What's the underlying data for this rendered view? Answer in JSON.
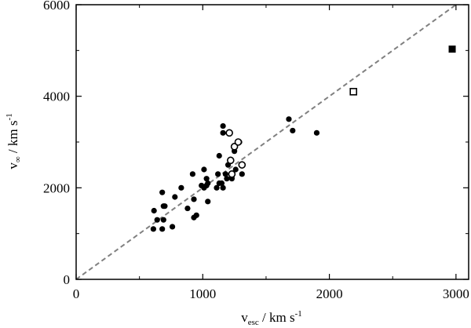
{
  "chart_data": {
    "type": "scatter",
    "xlabel": {
      "main": "v",
      "sub": "esc",
      "unit": " / km s",
      "sup": "-1"
    },
    "ylabel": {
      "main": "v",
      "sub": "∞",
      "unit": " / km s",
      "sup": "-1"
    },
    "xlim": [
      0,
      3100
    ],
    "ylim": [
      0,
      6000
    ],
    "xticks": [
      0,
      1000,
      2000,
      3000
    ],
    "yticks": [
      0,
      2000,
      4000,
      6000
    ],
    "xtick_labels": [
      "0",
      "1000",
      "2000",
      "3000"
    ],
    "ytick_labels": [
      "0",
      "2000",
      "4000",
      "6000"
    ],
    "grid": false,
    "reference_line": {
      "slope": 2.0,
      "style": "dashed",
      "color": "#808080"
    },
    "series": [
      {
        "marker": "filled-circle",
        "color": "#000000",
        "points": [
          [
            610,
            1100
          ],
          [
            615,
            1500
          ],
          [
            640,
            1300
          ],
          [
            680,
            1100
          ],
          [
            690,
            1300
          ],
          [
            680,
            1900
          ],
          [
            700,
            1600
          ],
          [
            690,
            1600
          ],
          [
            760,
            1150
          ],
          [
            780,
            1800
          ],
          [
            830,
            2000
          ],
          [
            880,
            1550
          ],
          [
            920,
            2300
          ],
          [
            930,
            1750
          ],
          [
            930,
            1350
          ],
          [
            950,
            1400
          ],
          [
            990,
            2050
          ],
          [
            1010,
            2000
          ],
          [
            1010,
            2400
          ],
          [
            1030,
            2050
          ],
          [
            1030,
            2200
          ],
          [
            1040,
            2100
          ],
          [
            1040,
            1700
          ],
          [
            1110,
            2000
          ],
          [
            1120,
            2300
          ],
          [
            1130,
            2100
          ],
          [
            1130,
            2700
          ],
          [
            1150,
            2100
          ],
          [
            1160,
            2000
          ],
          [
            1160,
            3350
          ],
          [
            1160,
            3200
          ],
          [
            1180,
            2300
          ],
          [
            1190,
            2200
          ],
          [
            1200,
            2500
          ],
          [
            1230,
            2250
          ],
          [
            1230,
            2200
          ],
          [
            1250,
            2800
          ],
          [
            1260,
            2400
          ],
          [
            1290,
            3000
          ],
          [
            1310,
            2300
          ],
          [
            1680,
            3500
          ],
          [
            1710,
            3250
          ],
          [
            1900,
            3200
          ]
        ]
      },
      {
        "marker": "open-circle",
        "color": "#000000",
        "points": [
          [
            1210,
            3200
          ],
          [
            1250,
            2900
          ],
          [
            1280,
            3000
          ],
          [
            1220,
            2600
          ],
          [
            1310,
            2500
          ],
          [
            1230,
            2300
          ]
        ]
      },
      {
        "marker": "open-square",
        "color": "#000000",
        "points": [
          [
            2190,
            4100
          ]
        ]
      },
      {
        "marker": "filled-square",
        "color": "#000000",
        "points": [
          [
            2970,
            5030
          ]
        ]
      }
    ]
  }
}
